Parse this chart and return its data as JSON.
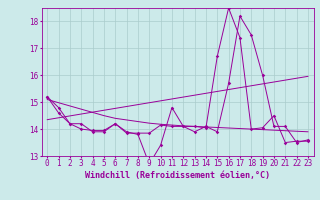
{
  "xlabel": "Windchill (Refroidissement éolien,°C)",
  "background_color": "#cceaea",
  "line_color": "#990099",
  "grid_color": "#aacccc",
  "x_hours": [
    0,
    1,
    2,
    3,
    4,
    5,
    6,
    7,
    8,
    9,
    10,
    11,
    12,
    13,
    14,
    15,
    16,
    17,
    18,
    19,
    20,
    21,
    22,
    23
  ],
  "series1": [
    15.2,
    14.8,
    14.2,
    14.2,
    13.9,
    13.9,
    14.2,
    13.9,
    13.8,
    12.7,
    13.4,
    14.8,
    14.1,
    14.1,
    14.05,
    16.7,
    18.5,
    17.4,
    14.0,
    14.05,
    14.5,
    13.5,
    13.55,
    13.55
  ],
  "series2": [
    15.2,
    14.6,
    14.2,
    14.0,
    13.95,
    13.95,
    14.2,
    13.85,
    13.85,
    13.85,
    14.15,
    14.1,
    14.1,
    13.9,
    14.1,
    13.9,
    15.7,
    18.2,
    17.5,
    16.0,
    14.1,
    14.1,
    13.5,
    13.6
  ],
  "trend1": [
    14.35,
    14.42,
    14.49,
    14.56,
    14.63,
    14.7,
    14.77,
    14.84,
    14.91,
    14.98,
    15.05,
    15.12,
    15.19,
    15.26,
    15.33,
    15.4,
    15.47,
    15.54,
    15.61,
    15.68,
    15.75,
    15.82,
    15.89,
    15.96
  ],
  "trend2": [
    15.1,
    14.98,
    14.86,
    14.74,
    14.62,
    14.5,
    14.4,
    14.34,
    14.28,
    14.22,
    14.18,
    14.15,
    14.12,
    14.1,
    14.08,
    14.06,
    14.04,
    14.02,
    14.0,
    13.98,
    13.96,
    13.94,
    13.92,
    13.9
  ],
  "ylim": [
    13,
    18.5
  ],
  "yticks": [
    13,
    14,
    15,
    16,
    17,
    18
  ],
  "xlabel_fontsize": 6,
  "tick_fontsize": 5.5
}
